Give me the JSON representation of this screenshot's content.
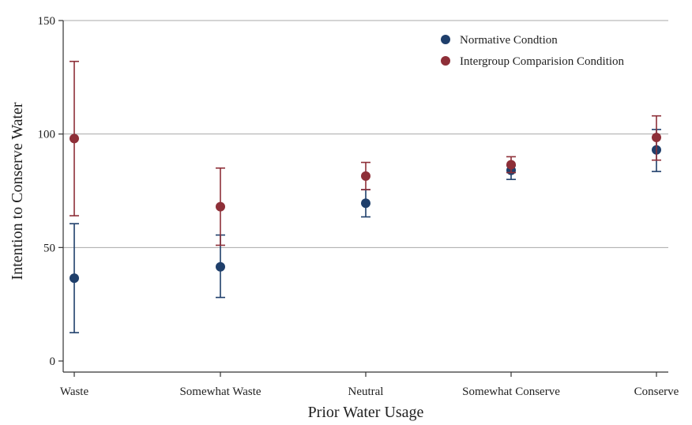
{
  "chart_data": {
    "type": "scatter",
    "subtype": "point-with-error-bars",
    "title": "",
    "xlabel": "Prior Water Usage",
    "ylabel": "Intention to Conserve Water",
    "ylim": [
      0,
      150
    ],
    "yticks": [
      0,
      50,
      100,
      150
    ],
    "ytick_labels": [
      "0",
      "50",
      "100",
      "150"
    ],
    "grid": true,
    "legend_position": "top-right",
    "categories": [
      "Waste",
      "Somewhat Waste",
      "Neutral",
      "Somewhat Conserve",
      "Conserve"
    ],
    "series": [
      {
        "name": "Normative Condtion",
        "color": "#1f3f6b",
        "values": [
          36.5,
          41.5,
          69.5,
          84,
          93
        ],
        "lower": [
          12.5,
          28,
          63.5,
          80,
          83.5
        ],
        "upper": [
          60.5,
          55.5,
          75.5,
          86,
          102
        ]
      },
      {
        "name": "Intergroup Comparision Condition",
        "color": "#8e2f38",
        "values": [
          98,
          68,
          81.5,
          86.5,
          98.5
        ],
        "lower": [
          64,
          51,
          75.5,
          83,
          88.5
        ],
        "upper": [
          132,
          85,
          87.5,
          90,
          108
        ]
      }
    ]
  }
}
